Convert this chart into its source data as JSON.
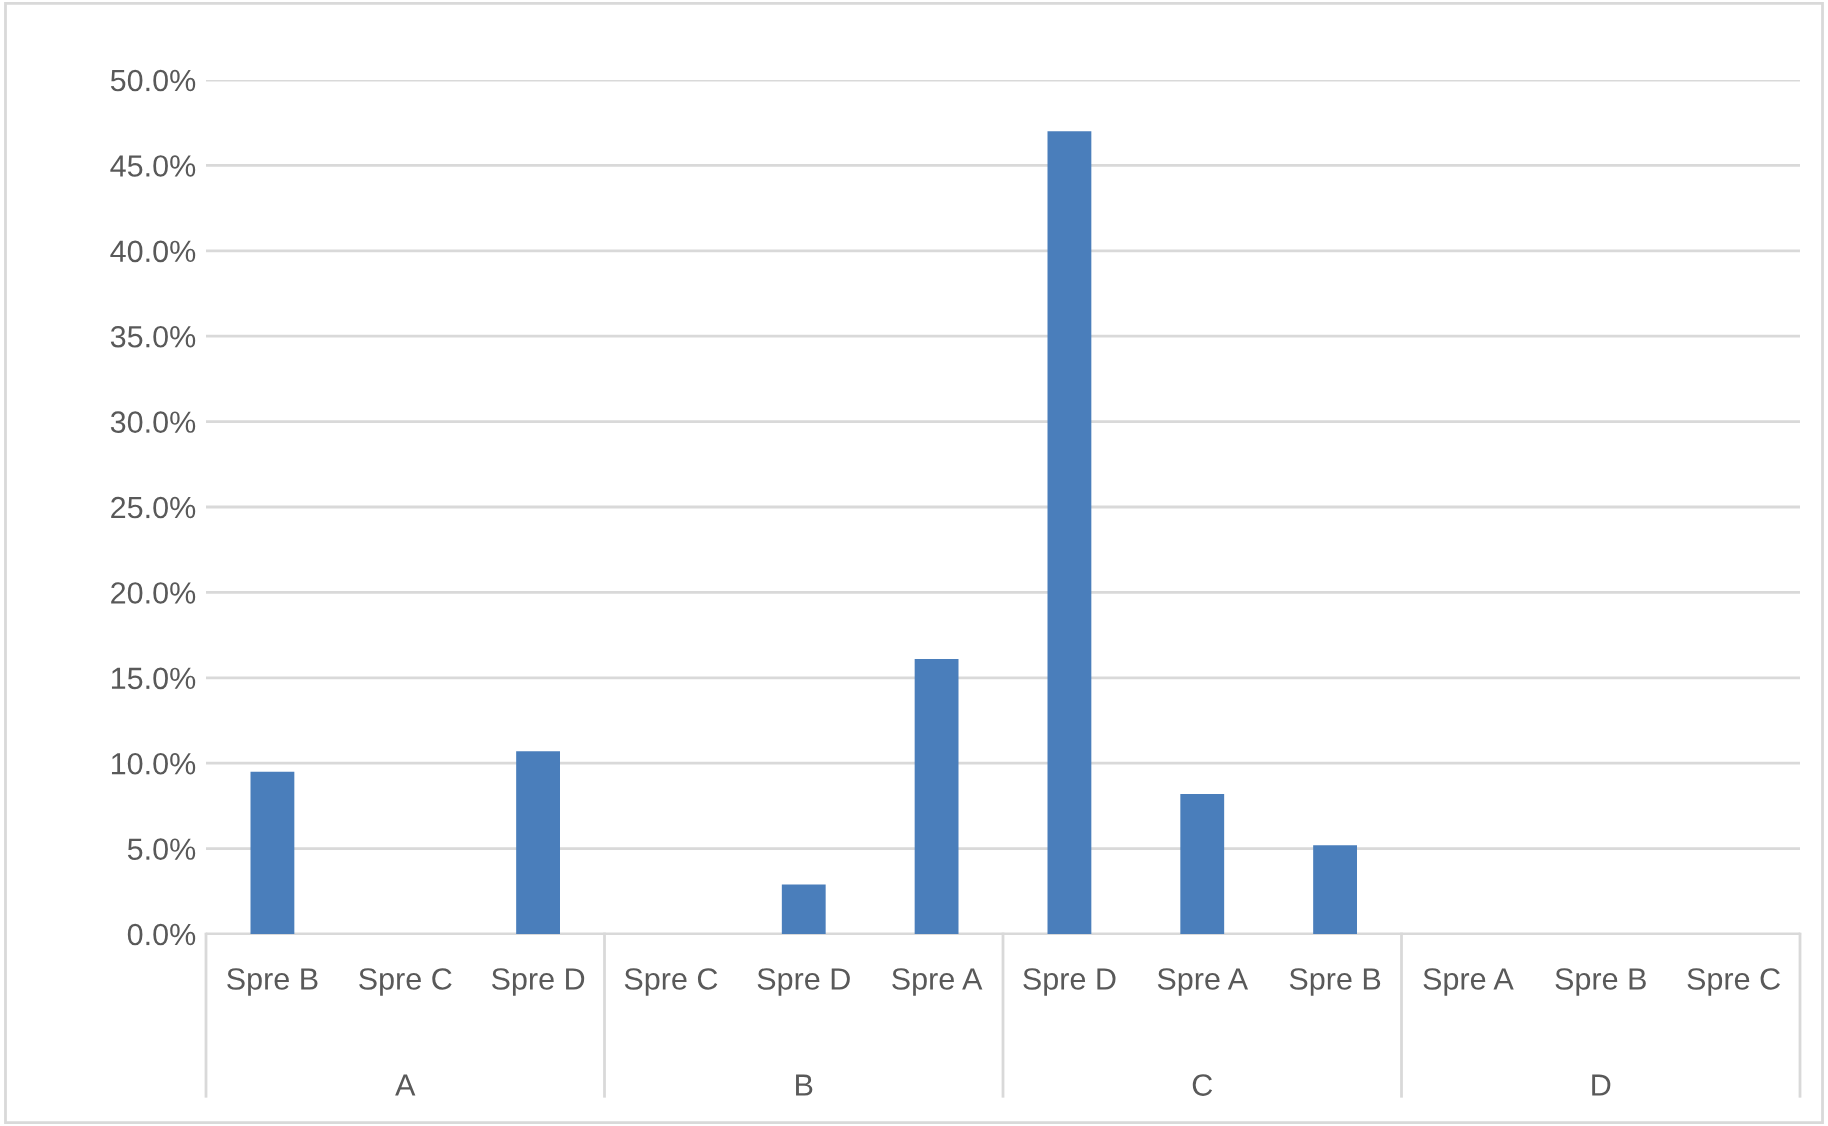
{
  "chart_data": {
    "type": "bar",
    "categories": [
      "Spre B",
      "Spre C",
      "Spre D",
      "Spre C",
      "Spre D",
      "Spre A",
      "Spre D",
      "Spre A",
      "Spre B",
      "Spre A",
      "Spre B",
      "Spre C"
    ],
    "values": [
      9.5,
      0,
      10.7,
      0,
      2.9,
      16.1,
      47.0,
      8.2,
      5.2,
      0,
      0,
      0
    ],
    "color": "#4a7ebb",
    "ylim": [
      0,
      50
    ],
    "yticks": [
      {
        "value": 0,
        "label": "0.0%"
      },
      {
        "value": 5,
        "label": "5.0%"
      },
      {
        "value": 10,
        "label": "10.0%"
      },
      {
        "value": 15,
        "label": "15.0%"
      },
      {
        "value": 20,
        "label": "20.0%"
      },
      {
        "value": 25,
        "label": "25.0%"
      },
      {
        "value": 30,
        "label": "30.0%"
      },
      {
        "value": 35,
        "label": "35.0%"
      },
      {
        "value": 40,
        "label": "40.0%"
      },
      {
        "value": 45,
        "label": "45.0%"
      },
      {
        "value": 50,
        "label": "50.0%"
      }
    ],
    "grid": "y",
    "annotations": [
      "A",
      "B",
      "C",
      "D"
    ]
  }
}
